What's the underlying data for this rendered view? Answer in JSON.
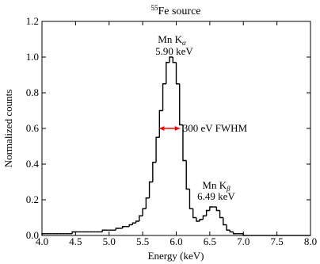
{
  "chart_data": {
    "type": "step-histogram",
    "title_sup": "55",
    "title": "Fe source",
    "x_label": "Energy (keV)",
    "y_label": "Normalized counts",
    "color": "#000000",
    "bins": [
      4.0,
      4.05,
      4.1,
      4.15,
      4.2,
      4.25,
      4.3,
      4.35,
      4.4,
      4.45,
      4.5,
      4.55,
      4.6,
      4.65,
      4.7,
      4.75,
      4.8,
      4.85,
      4.9,
      4.95,
      5.0,
      5.05,
      5.1,
      5.15,
      5.2,
      5.25,
      5.3,
      5.35,
      5.4,
      5.45,
      5.5,
      5.55,
      5.6,
      5.65,
      5.7,
      5.75,
      5.8,
      5.85,
      5.9,
      5.95,
      6.0,
      6.05,
      6.1,
      6.15,
      6.2,
      6.25,
      6.3,
      6.35,
      6.4,
      6.45,
      6.5,
      6.55,
      6.6,
      6.65,
      6.7,
      6.75,
      6.8,
      6.85,
      6.9,
      6.95,
      7.0,
      7.05,
      7.1,
      7.15,
      7.2,
      7.25,
      7.3,
      7.35,
      7.4,
      7.45,
      7.5,
      7.55,
      7.6,
      7.65,
      7.7,
      7.75,
      7.8,
      7.85,
      7.9,
      7.95,
      8.0
    ],
    "values": [
      0.01,
      0.01,
      0.01,
      0.01,
      0.01,
      0.01,
      0.01,
      0.01,
      0.01,
      0.02,
      0.02,
      0.02,
      0.02,
      0.02,
      0.02,
      0.02,
      0.02,
      0.02,
      0.03,
      0.03,
      0.03,
      0.03,
      0.04,
      0.04,
      0.05,
      0.05,
      0.06,
      0.07,
      0.08,
      0.11,
      0.15,
      0.21,
      0.3,
      0.41,
      0.55,
      0.7,
      0.85,
      0.97,
      1.0,
      0.97,
      0.85,
      0.62,
      0.42,
      0.26,
      0.15,
      0.1,
      0.08,
      0.09,
      0.11,
      0.14,
      0.16,
      0.16,
      0.14,
      0.1,
      0.06,
      0.03,
      0.02,
      0.01,
      0.01,
      0.01,
      0,
      0,
      0,
      0,
      0,
      0,
      0,
      0,
      0,
      0,
      0,
      0,
      0,
      0,
      0,
      0,
      0,
      0,
      0,
      0
    ],
    "xlim": [
      4.0,
      8.0
    ],
    "ylim": [
      0.0,
      1.2
    ],
    "xticks": [
      {
        "value": 4.0,
        "label": "4.0"
      },
      4.5,
      {
        "value": 5.0,
        "label": "5.0"
      },
      5.5,
      {
        "value": 6.0,
        "label": "6.0"
      },
      6.5,
      {
        "value": 7.0,
        "label": "7.0"
      },
      7.5,
      {
        "value": 8.0,
        "label": "8.0"
      }
    ],
    "yticks": [
      {
        "value": 0.0,
        "label": "0.0"
      },
      0.2,
      0.4,
      0.6,
      0.8,
      {
        "value": 1.0,
        "label": "1.0"
      },
      1.2
    ],
    "annotations": {
      "ka_name": {
        "text": "Mn K",
        "sub": "α"
      },
      "ka_energy": "5.90 keV",
      "kb_name": {
        "text": "Mn K",
        "sub": "β"
      },
      "kb_energy": "6.49 keV",
      "fwhm": {
        "text": "300 eV FWHM",
        "color": "#ff0000",
        "x": [
          5.75,
          6.05
        ],
        "y": 0.6
      }
    }
  }
}
